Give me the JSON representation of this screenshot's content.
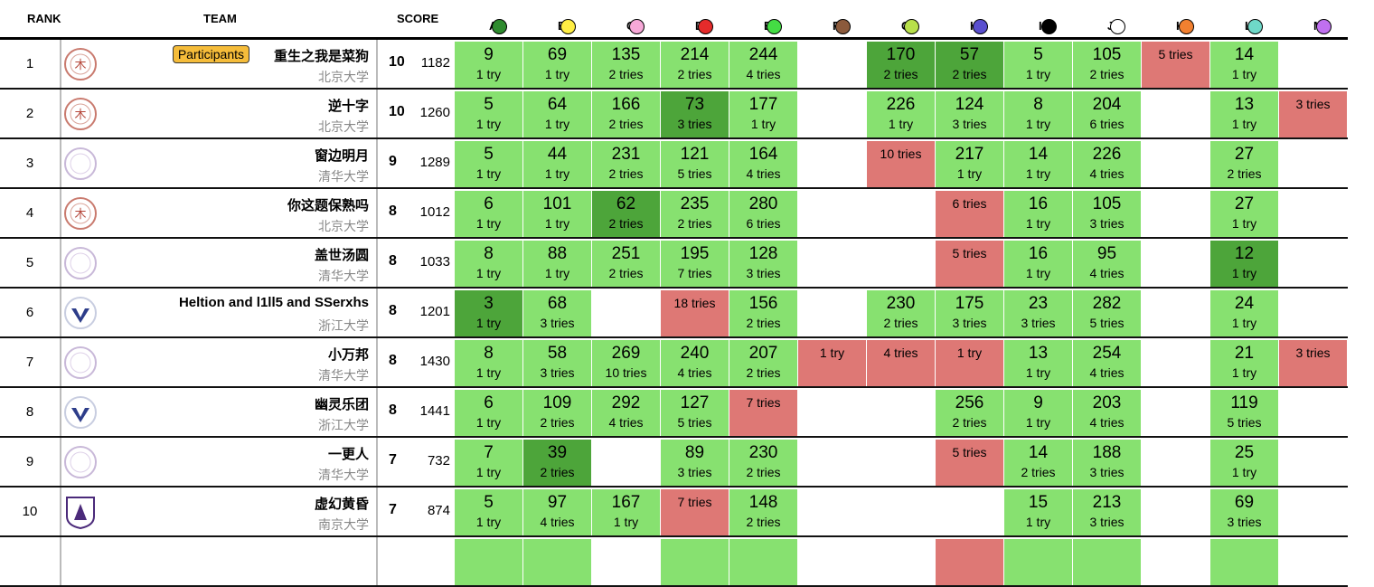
{
  "header": {
    "rank": "RANK",
    "team": "TEAM",
    "score": "SCORE"
  },
  "problems": [
    {
      "label": "A",
      "color": "#2e8b2e"
    },
    {
      "label": "B",
      "color": "#ffee44"
    },
    {
      "label": "C",
      "color": "#f7a8d8"
    },
    {
      "label": "D",
      "color": "#e52b2b"
    },
    {
      "label": "E",
      "color": "#44dd44"
    },
    {
      "label": "F",
      "color": "#8b5a3c"
    },
    {
      "label": "G",
      "color": "#b8e04a"
    },
    {
      "label": "H",
      "color": "#5a4fcf"
    },
    {
      "label": "I",
      "color": "#000000"
    },
    {
      "label": "J",
      "color": "#ffffff"
    },
    {
      "label": "K",
      "color": "#f28030"
    },
    {
      "label": "L",
      "color": "#6fd8c8"
    },
    {
      "label": "M",
      "color": "#c070f0"
    }
  ],
  "status_colors": {
    "ac": "#87e170",
    "first": "#4da53a",
    "fail": "#de7875"
  },
  "rows": [
    {
      "rank": "1",
      "name": "重生之我是菜狗",
      "badge": "Participants",
      "school": "北京大学",
      "logo": "pku",
      "solved": "10",
      "penalty": "1182",
      "cells": [
        [
          "9",
          "1 try",
          "ac"
        ],
        [
          "69",
          "1 try",
          "ac"
        ],
        [
          "135",
          "2 tries",
          "ac"
        ],
        [
          "214",
          "2 tries",
          "ac"
        ],
        [
          "244",
          "4 tries",
          "ac"
        ],
        null,
        [
          "170",
          "2 tries",
          "first"
        ],
        [
          "57",
          "2 tries",
          "first"
        ],
        [
          "5",
          "1 try",
          "ac"
        ],
        [
          "105",
          "2 tries",
          "ac"
        ],
        [
          "",
          "5 tries",
          "fail"
        ],
        [
          "14",
          "1 try",
          "ac"
        ],
        null
      ]
    },
    {
      "rank": "2",
      "name": "逆十字",
      "school": "北京大学",
      "logo": "pku",
      "solved": "10",
      "penalty": "1260",
      "cells": [
        [
          "5",
          "1 try",
          "ac"
        ],
        [
          "64",
          "1 try",
          "ac"
        ],
        [
          "166",
          "2 tries",
          "ac"
        ],
        [
          "73",
          "3 tries",
          "first"
        ],
        [
          "177",
          "1 try",
          "ac"
        ],
        null,
        [
          "226",
          "1 try",
          "ac"
        ],
        [
          "124",
          "3 tries",
          "ac"
        ],
        [
          "8",
          "1 try",
          "ac"
        ],
        [
          "204",
          "6 tries",
          "ac"
        ],
        null,
        [
          "13",
          "1 try",
          "ac"
        ],
        [
          "",
          "3 tries",
          "fail"
        ]
      ]
    },
    {
      "rank": "3",
      "name": "窗边明月",
      "school": "清华大学",
      "logo": "thu",
      "solved": "9",
      "penalty": "1289",
      "cells": [
        [
          "5",
          "1 try",
          "ac"
        ],
        [
          "44",
          "1 try",
          "ac"
        ],
        [
          "231",
          "2 tries",
          "ac"
        ],
        [
          "121",
          "5 tries",
          "ac"
        ],
        [
          "164",
          "4 tries",
          "ac"
        ],
        null,
        [
          "",
          "10 tries",
          "fail"
        ],
        [
          "217",
          "1 try",
          "ac"
        ],
        [
          "14",
          "1 try",
          "ac"
        ],
        [
          "226",
          "4 tries",
          "ac"
        ],
        null,
        [
          "27",
          "2 tries",
          "ac"
        ],
        null
      ]
    },
    {
      "rank": "4",
      "name": "你这题保熟吗",
      "school": "北京大学",
      "logo": "pku",
      "solved": "8",
      "penalty": "1012",
      "cells": [
        [
          "6",
          "1 try",
          "ac"
        ],
        [
          "101",
          "1 try",
          "ac"
        ],
        [
          "62",
          "2 tries",
          "first"
        ],
        [
          "235",
          "2 tries",
          "ac"
        ],
        [
          "280",
          "6 tries",
          "ac"
        ],
        null,
        null,
        [
          "",
          "6 tries",
          "fail"
        ],
        [
          "16",
          "1 try",
          "ac"
        ],
        [
          "105",
          "3 tries",
          "ac"
        ],
        null,
        [
          "27",
          "1 try",
          "ac"
        ],
        null
      ]
    },
    {
      "rank": "5",
      "name": "盖世汤圆",
      "school": "清华大学",
      "logo": "thu",
      "solved": "8",
      "penalty": "1033",
      "cells": [
        [
          "8",
          "1 try",
          "ac"
        ],
        [
          "88",
          "1 try",
          "ac"
        ],
        [
          "251",
          "2 tries",
          "ac"
        ],
        [
          "195",
          "7 tries",
          "ac"
        ],
        [
          "128",
          "3 tries",
          "ac"
        ],
        null,
        null,
        [
          "",
          "5 tries",
          "fail"
        ],
        [
          "16",
          "1 try",
          "ac"
        ],
        [
          "95",
          "4 tries",
          "ac"
        ],
        null,
        [
          "12",
          "1 try",
          "first"
        ],
        null
      ]
    },
    {
      "rank": "6",
      "name": "Heltion and l1ll5 and SSerxhs",
      "school": "浙江大学",
      "logo": "zju",
      "solved": "8",
      "penalty": "1201",
      "cells": [
        [
          "3",
          "1 try",
          "first"
        ],
        [
          "68",
          "3 tries",
          "ac"
        ],
        null,
        [
          "",
          "18 tries",
          "fail"
        ],
        [
          "156",
          "2 tries",
          "ac"
        ],
        null,
        [
          "230",
          "2 tries",
          "ac"
        ],
        [
          "175",
          "3 tries",
          "ac"
        ],
        [
          "23",
          "3 tries",
          "ac"
        ],
        [
          "282",
          "5 tries",
          "ac"
        ],
        null,
        [
          "24",
          "1 try",
          "ac"
        ],
        null
      ]
    },
    {
      "rank": "7",
      "name": "小万邦",
      "school": "清华大学",
      "logo": "thu",
      "solved": "8",
      "penalty": "1430",
      "cells": [
        [
          "8",
          "1 try",
          "ac"
        ],
        [
          "58",
          "3 tries",
          "ac"
        ],
        [
          "269",
          "10 tries",
          "ac"
        ],
        [
          "240",
          "4 tries",
          "ac"
        ],
        [
          "207",
          "2 tries",
          "ac"
        ],
        [
          "",
          "1 try",
          "fail"
        ],
        [
          "",
          "4 tries",
          "fail"
        ],
        [
          "",
          "1 try",
          "fail"
        ],
        [
          "13",
          "1 try",
          "ac"
        ],
        [
          "254",
          "4 tries",
          "ac"
        ],
        null,
        [
          "21",
          "1 try",
          "ac"
        ],
        [
          "",
          "3 tries",
          "fail"
        ]
      ]
    },
    {
      "rank": "8",
      "name": "幽灵乐团",
      "school": "浙江大学",
      "logo": "zju",
      "solved": "8",
      "penalty": "1441",
      "cells": [
        [
          "6",
          "1 try",
          "ac"
        ],
        [
          "109",
          "2 tries",
          "ac"
        ],
        [
          "292",
          "4 tries",
          "ac"
        ],
        [
          "127",
          "5 tries",
          "ac"
        ],
        [
          "",
          "7 tries",
          "fail"
        ],
        null,
        null,
        [
          "256",
          "2 tries",
          "ac"
        ],
        [
          "9",
          "1 try",
          "ac"
        ],
        [
          "203",
          "4 tries",
          "ac"
        ],
        null,
        [
          "119",
          "5 tries",
          "ac"
        ],
        null
      ]
    },
    {
      "rank": "9",
      "name": "一更人",
      "school": "清华大学",
      "logo": "thu",
      "solved": "7",
      "penalty": "732",
      "cells": [
        [
          "7",
          "1 try",
          "ac"
        ],
        [
          "39",
          "2 tries",
          "first"
        ],
        null,
        [
          "89",
          "3 tries",
          "ac"
        ],
        [
          "230",
          "2 tries",
          "ac"
        ],
        null,
        null,
        [
          "",
          "5 tries",
          "fail"
        ],
        [
          "14",
          "2 tries",
          "ac"
        ],
        [
          "188",
          "3 tries",
          "ac"
        ],
        null,
        [
          "25",
          "1 try",
          "ac"
        ],
        null
      ]
    },
    {
      "rank": "10",
      "name": "虚幻黄昏",
      "school": "南京大学",
      "logo": "nju",
      "solved": "7",
      "penalty": "874",
      "cells": [
        [
          "5",
          "1 try",
          "ac"
        ],
        [
          "97",
          "4 tries",
          "ac"
        ],
        [
          "167",
          "1 try",
          "ac"
        ],
        [
          "",
          "7 tries",
          "fail"
        ],
        [
          "148",
          "2 tries",
          "ac"
        ],
        null,
        null,
        null,
        [
          "15",
          "1 try",
          "ac"
        ],
        [
          "213",
          "3 tries",
          "ac"
        ],
        null,
        [
          "69",
          "3 tries",
          "ac"
        ],
        null
      ]
    },
    {
      "rank": "",
      "name": "",
      "school": "",
      "logo": "",
      "solved": "",
      "penalty": "",
      "cells": [
        [
          "",
          "",
          "ac"
        ],
        [
          "",
          "",
          "ac"
        ],
        null,
        [
          "",
          "",
          "ac"
        ],
        [
          "",
          "",
          "ac"
        ],
        null,
        null,
        [
          "",
          "",
          "fail"
        ],
        [
          "",
          "",
          "ac"
        ],
        [
          "",
          "",
          "ac"
        ],
        null,
        [
          "",
          "",
          "ac"
        ],
        null
      ]
    }
  ]
}
